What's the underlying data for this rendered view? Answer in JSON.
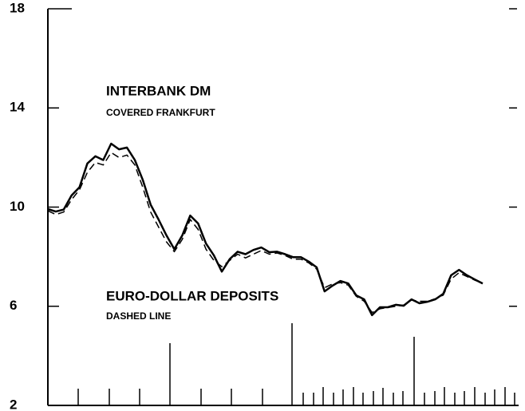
{
  "chart_data": {
    "type": "line",
    "series": [
      {
        "name": "INTERBANK DM",
        "color": "#000000",
        "style": "solid",
        "values": [
          9.92,
          9.82,
          9.9,
          10.47,
          10.8,
          11.76,
          12.05,
          11.9,
          12.56,
          12.33,
          12.4,
          11.9,
          11.1,
          10.1,
          9.5,
          8.86,
          8.3,
          8.86,
          9.66,
          9.34,
          8.53,
          8.05,
          7.4,
          7.9,
          8.2,
          8.1,
          8.27,
          8.37,
          8.18,
          8.2,
          8.1,
          7.98,
          7.98,
          7.8,
          7.57,
          6.6,
          6.83,
          7.02,
          6.92,
          6.44,
          6.28,
          5.64,
          5.96,
          5.96,
          6.06,
          6.02,
          6.28,
          6.12,
          6.18,
          6.28,
          6.5,
          7.25,
          7.47,
          7.25,
          7.08,
          6.92
        ]
      },
      {
        "name": "EURO-DOLLAR DEPOSITS",
        "color": "#000000",
        "style": "dashed",
        "values": [
          9.85,
          9.7,
          9.8,
          10.3,
          10.7,
          11.4,
          11.8,
          11.7,
          12.2,
          12.0,
          12.1,
          11.7,
          10.8,
          9.8,
          9.2,
          8.6,
          8.2,
          8.7,
          9.5,
          9.1,
          8.3,
          7.85,
          7.6,
          7.85,
          8.1,
          7.95,
          8.1,
          8.25,
          8.1,
          8.15,
          8.05,
          7.9,
          7.9,
          7.75,
          7.5,
          6.75,
          6.9,
          6.95,
          6.85,
          6.4,
          6.2,
          5.75,
          5.9,
          5.95,
          6.0,
          6.05,
          6.25,
          6.2,
          6.2,
          6.3,
          6.45,
          7.1,
          7.35,
          7.2,
          7.05,
          6.95
        ]
      }
    ],
    "annotations": [
      "COVERED FRANKFURT",
      "DASHED LINE"
    ],
    "ylim": [
      2,
      18
    ],
    "yticks": [
      2,
      6,
      10,
      14,
      18
    ],
    "grid": false
  }
}
